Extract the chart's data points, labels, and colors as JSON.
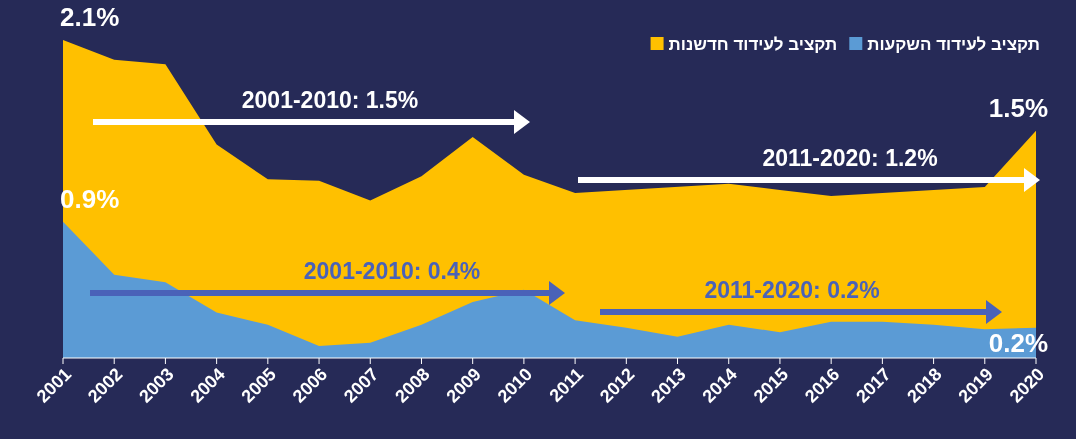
{
  "chart_data": {
    "type": "area",
    "categories": [
      "2001",
      "2002",
      "2003",
      "2004",
      "2005",
      "2006",
      "2007",
      "2008",
      "2009",
      "2010",
      "2011",
      "2012",
      "2013",
      "2014",
      "2015",
      "2016",
      "2017",
      "2018",
      "2019",
      "2020"
    ],
    "series": [
      {
        "name": "תקציב לעידוד חדשנות",
        "color": "#ffc000",
        "values": [
          2.1,
          1.97,
          1.94,
          1.41,
          1.18,
          1.17,
          1.04,
          1.2,
          1.46,
          1.21,
          1.09,
          null,
          null,
          1.15,
          1.11,
          1.07,
          1.09,
          null,
          1.13,
          1.5
        ],
        "value_labels": [
          "2.1%",
          null,
          null,
          null,
          null,
          null,
          null,
          null,
          null,
          null,
          null,
          null,
          null,
          null,
          null,
          null,
          null,
          null,
          null,
          "1.5%"
        ]
      },
      {
        "name": "תקציב לעידוד השקעות",
        "color": "#5b9bd5",
        "values": [
          0.9,
          0.55,
          0.5,
          0.3,
          0.22,
          0.08,
          0.1,
          0.22,
          0.37,
          0.45,
          0.25,
          0.2,
          0.14,
          0.22,
          0.17,
          0.24,
          0.24,
          0.22,
          0.19,
          0.2
        ],
        "value_labels": [
          "0.9%",
          null,
          null,
          null,
          null,
          null,
          null,
          null,
          null,
          null,
          null,
          null,
          null,
          null,
          null,
          null,
          null,
          null,
          null,
          "0.2%"
        ]
      }
    ],
    "tick_labels": "x",
    "legend": "top right",
    "annotations": [
      "2001-2010: 1.5%",
      "2011-2020: 1.2%",
      "2001-2010: 0.4%",
      "2011-2020: 0.2%"
    ]
  }
}
